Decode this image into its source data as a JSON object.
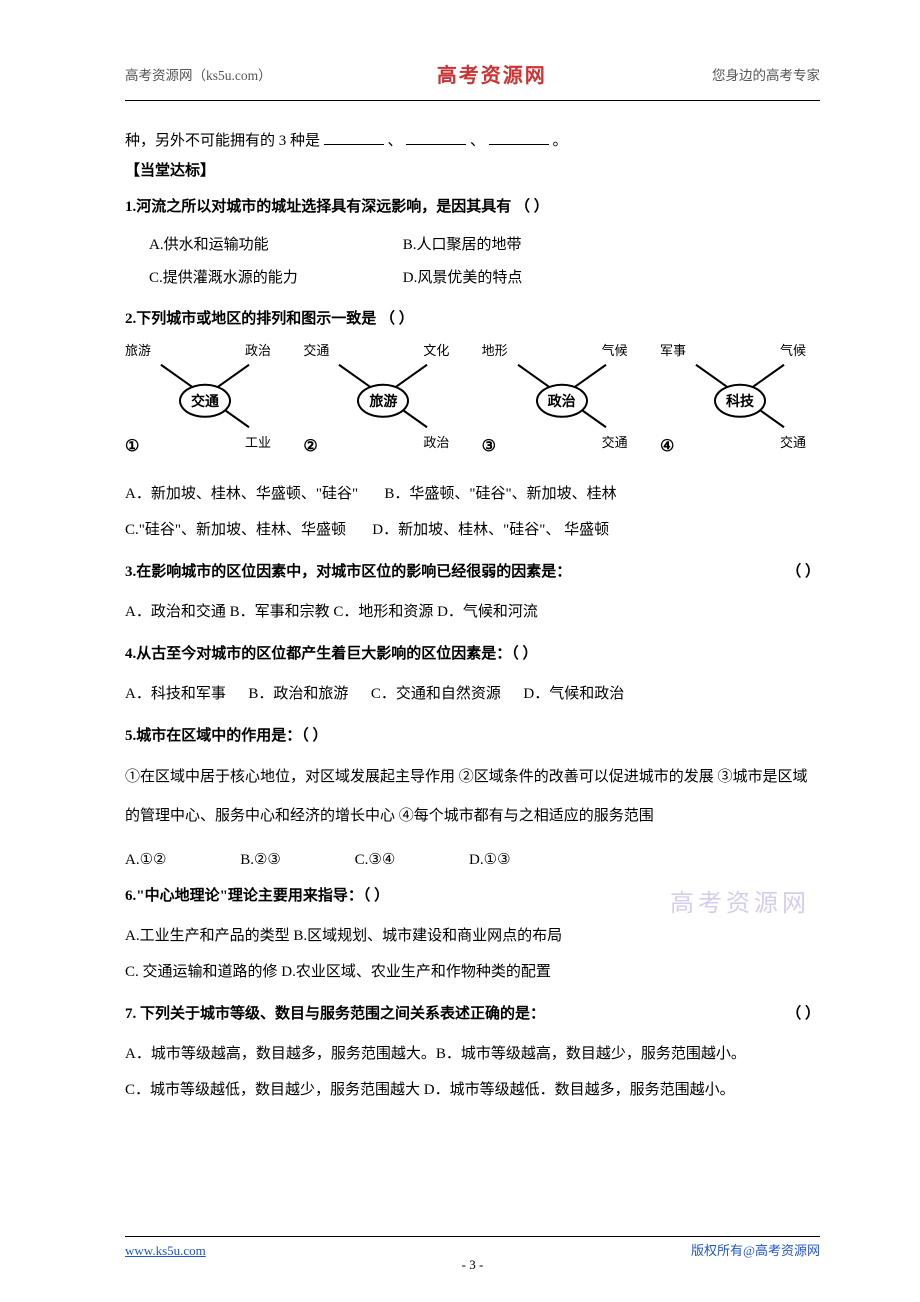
{
  "header": {
    "left": "高考资源网（ks5u.com）",
    "center": "高考资源网",
    "right": "您身边的高考专家"
  },
  "intro": {
    "prefix": "种，另外不可能拥有的 3 种是",
    "sep1": "、",
    "sep2": "  、",
    "suffix": "。"
  },
  "section_tag": "【当堂达标】",
  "q1": {
    "title": "1.河流之所以对城市的城址选择具有深远影响，是因其具有  （  ）",
    "a": "A.供水和运输功能",
    "b": "B.人口聚居的地带",
    "c": "C.提供灌溉水源的能力",
    "d": "D.风景优美的特点"
  },
  "q2": {
    "title": "2.下列城市或地区的排列和图示一致是  （  ）",
    "diagrams": [
      {
        "num": "①",
        "center": "交通",
        "tl": "旅游",
        "tr": "政治",
        "br": "工业"
      },
      {
        "num": "②",
        "center": "旅游",
        "tl": "交通",
        "tr": "文化",
        "br": "政治"
      },
      {
        "num": "③",
        "center": "政治",
        "tl": "地形",
        "tr": "气候",
        "br": "交通"
      },
      {
        "num": "④",
        "center": "科技",
        "tl": "军事",
        "tr": "气候",
        "br": "交通"
      }
    ],
    "a": "A．新加坡、桂林、华盛顿、\"硅谷\"",
    "b": "B．华盛顿、\"硅谷\"、新加坡、桂林",
    "c": "C.\"硅谷\"、新加坡、桂林、华盛顿",
    "d": "D．新加坡、桂林、\"硅谷\"、 华盛顿"
  },
  "q3": {
    "title": "3.在影响城市的区位因素中，对城市区位的影响已经很弱的因素是：",
    "paren": "（        ）",
    "opts": " A．政治和交通  B．军事和宗教 C．地形和资源   D．气候和河流"
  },
  "q4": {
    "title": "4.从古至今对城市的区位都产生着巨大影响的区位因素是：（    ）",
    "a": "A．科技和军事",
    "b": "B．政治和旅游",
    "c": "C．交通和自然资源",
    "d": "D．气候和政治"
  },
  "q5": {
    "title": "5.城市在区域中的作用是：（    ）",
    "body": "①在区域中居于核心地位，对区域发展起主导作用        ②区域条件的改善可以促进城市的发展   ③城市是区域的管理中心、服务中心和经济的增长中心    ④每个城市都有与之相适应的服务范围",
    "a": "A.①②",
    "b": "B.②③",
    "c": "C.③④",
    "d": "D.①③"
  },
  "q6": {
    "title": "6.\"中心地理论\"理论主要用来指导：（        ）",
    "line1": "A.工业生产和产品的类型 B.区域规划、城市建设和商业网点的布局",
    "line2": "C. 交通运输和道路的修 D.农业区域、农业生产和作物种类的配置"
  },
  "q7": {
    "title": "7. 下列关于城市等级、数目与服务范围之间关系表述正确的是：",
    "paren": "（        ）",
    "line1": "A．城市等级越高，数目越多，服务范围越大。B．城市等级越高，数目越少，服务范围越小。",
    "line2": "C．城市等级越低，数目越少，服务范围越大 D．城市等级越低．数目越多，服务范围越小。"
  },
  "watermark": "高考资源网",
  "footer": {
    "left": "www.ks5u.com",
    "center": "- 3 -",
    "right": "版权所有@高考资源网"
  },
  "colors": {
    "brand": "#cc3333",
    "link": "#2255cc",
    "watermark": "#c6b9e4"
  }
}
